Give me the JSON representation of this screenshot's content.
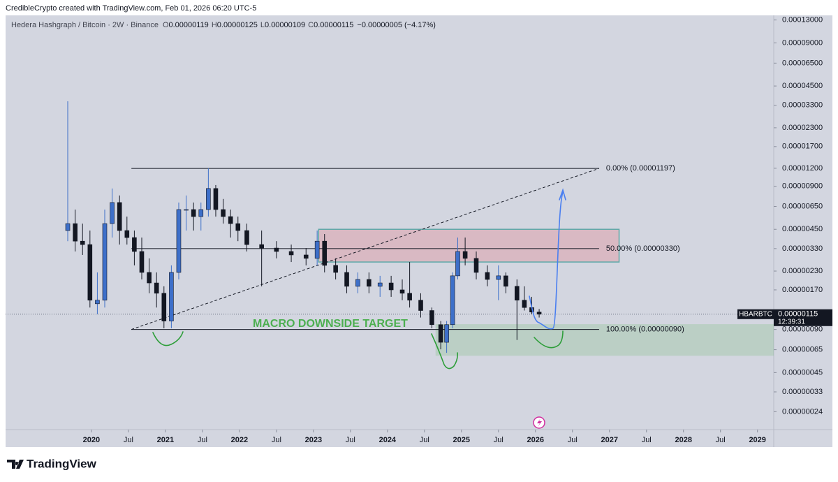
{
  "chart_data": {
    "type": "candlestick",
    "credit": "CredibleCrypto created with TradingView.com, Feb 01, 2026 06:20 UTC-5",
    "symbol_title": "Hedera Hashgraph / Bitcoin · 2W · Binance",
    "ohlc_legend": [
      {
        "key": "O",
        "value": "0.00000119"
      },
      {
        "key": "H",
        "value": "0.00000125"
      },
      {
        "key": "L",
        "value": "0.00000109"
      },
      {
        "key": "C",
        "value": "0.00000115"
      }
    ],
    "change": "−0.00000005 (−4.17%)",
    "brand": "TradingView",
    "log_scale": true,
    "grid": false,
    "up_color": "#3d6fc9",
    "down_color": "#131722",
    "xlim": [
      2018.84,
      2029.22
    ],
    "ylim": [
      1.8e-07,
      0.00014
    ],
    "xticks": [
      {
        "value": 2020,
        "label": "2020"
      },
      {
        "value": 2020.5,
        "label": "Jul"
      },
      {
        "value": 2021,
        "label": "2021"
      },
      {
        "value": 2021.5,
        "label": "Jul"
      },
      {
        "value": 2022,
        "label": "2022"
      },
      {
        "value": 2022.5,
        "label": "Jul"
      },
      {
        "value": 2023,
        "label": "2023"
      },
      {
        "value": 2023.5,
        "label": "Jul"
      },
      {
        "value": 2024,
        "label": "2024"
      },
      {
        "value": 2024.5,
        "label": "Jul"
      },
      {
        "value": 2025,
        "label": "2025"
      },
      {
        "value": 2025.5,
        "label": "Jul"
      },
      {
        "value": 2026,
        "label": "2026"
      },
      {
        "value": 2026.5,
        "label": "Jul"
      },
      {
        "value": 2027,
        "label": "2027"
      },
      {
        "value": 2027.5,
        "label": "Jul"
      },
      {
        "value": 2028,
        "label": "2028"
      },
      {
        "value": 2028.5,
        "label": "Jul"
      },
      {
        "value": 2029,
        "label": "2029"
      }
    ],
    "yticks": [
      {
        "value": 0.00013,
        "label": "0.00013000"
      },
      {
        "value": 9e-05,
        "label": "0.00009000"
      },
      {
        "value": 6.5e-05,
        "label": "0.00006500"
      },
      {
        "value": 4.5e-05,
        "label": "0.00004500"
      },
      {
        "value": 3.3e-05,
        "label": "0.00003300"
      },
      {
        "value": 2.3e-05,
        "label": "0.00002300"
      },
      {
        "value": 1.7e-05,
        "label": "0.00001700"
      },
      {
        "value": 1.2e-05,
        "label": "0.00001200"
      },
      {
        "value": 9e-06,
        "label": "0.00000900"
      },
      {
        "value": 6.5e-06,
        "label": "0.00000650"
      },
      {
        "value": 4.5e-06,
        "label": "0.00000450"
      },
      {
        "value": 3.3e-06,
        "label": "0.00000330"
      },
      {
        "value": 2.3e-06,
        "label": "0.00000230"
      },
      {
        "value": 1.7e-06,
        "label": "0.00000170"
      },
      {
        "value": 9e-07,
        "label": "0.00000090"
      },
      {
        "value": 6.5e-07,
        "label": "0.00000065"
      },
      {
        "value": 4.5e-07,
        "label": "0.00000045"
      },
      {
        "value": 3.3e-07,
        "label": "0.00000033"
      },
      {
        "value": 2.4e-07,
        "label": "0.00000024"
      }
    ],
    "x": [
      2019.68,
      2019.78,
      2019.88,
      2019.98,
      2020.08,
      2020.18,
      2020.28,
      2020.38,
      2020.48,
      2020.58,
      2020.68,
      2020.78,
      2020.88,
      2020.98,
      2021.08,
      2021.18,
      2021.28,
      2021.38,
      2021.48,
      2021.58,
      2021.68,
      2021.78,
      2021.88,
      2021.98,
      2022.1,
      2022.3,
      2022.5,
      2022.7,
      2022.9,
      2023.05,
      2023.15,
      2023.3,
      2023.45,
      2023.6,
      2023.75,
      2023.9,
      2024.05,
      2024.2,
      2024.3,
      2024.45,
      2024.6,
      2024.72,
      2024.8,
      2024.88,
      2024.95,
      2025.05,
      2025.2,
      2025.35,
      2025.5,
      2025.6,
      2025.75,
      2025.85,
      2025.95,
      2026.05
    ],
    "open": [
      4.41e-06,
      4.93e-06,
      3.72e-06,
      3.52e-06,
      1.36e-06,
      1.44e-06,
      4.93e-06,
      6.92e-06,
      4.41e-06,
      3.94e-06,
      3.15e-06,
      2.25e-06,
      1.9e-06,
      1.61e-06,
      1.03e-06,
      2.25e-06,
      6.18e-06,
      6.18e-06,
      5.52e-06,
      6.18e-06,
      8.67e-06,
      6.18e-06,
      5.52e-06,
      4.93e-06,
      4.41e-06,
      3.52e-06,
      3.33e-06,
      3.15e-06,
      2.98e-06,
      2.82e-06,
      3.72e-06,
      2.52e-06,
      2.25e-06,
      1.8e-06,
      2.01e-06,
      1.8e-06,
      1.9e-06,
      1.7e-06,
      1.61e-06,
      1.44e-06,
      1.22e-06,
      9.72e-07,
      7.32e-07,
      9.72e-07,
      2.13e-06,
      3.15e-06,
      2.82e-06,
      2.25e-06,
      2.01e-06,
      2.13e-06,
      1.8e-06,
      1.44e-06,
      1.28e-06,
      1.19e-06
    ],
    "high": [
      3.52e-05,
      6.18e-06,
      4.93e-06,
      4.41e-06,
      2.25e-06,
      6.18e-06,
      8.67e-06,
      7.75e-06,
      5.52e-06,
      4.41e-06,
      3.94e-06,
      2.82e-06,
      2.25e-06,
      1.8e-06,
      2.52e-06,
      6.92e-06,
      7.75e-06,
      6.92e-06,
      6.92e-06,
      1.2e-05,
      9.16e-06,
      7.33e-06,
      6.18e-06,
      5.52e-06,
      4.93e-06,
      4.41e-06,
      3.72e-06,
      3.52e-06,
      3.33e-06,
      4.41e-06,
      4.17e-06,
      2.82e-06,
      2.52e-06,
      2.25e-06,
      2.25e-06,
      2.13e-06,
      2.13e-06,
      2.01e-06,
      2.66e-06,
      1.61e-06,
      1.28e-06,
      1.03e-06,
      1.03e-06,
      2.25e-06,
      3.94e-06,
      3.94e-06,
      3.15e-06,
      2.52e-06,
      2.52e-06,
      2.25e-06,
      2.01e-06,
      1.8e-06,
      1.52e-06,
      1.25e-06
    ],
    "low": [
      3.72e-06,
      3.15e-06,
      2.98e-06,
      1.28e-06,
      1.15e-06,
      1.28e-06,
      3.94e-06,
      3.52e-06,
      3.52e-06,
      2.52e-06,
      2.01e-06,
      1.61e-06,
      1.28e-06,
      9.17e-07,
      9.17e-07,
      2.01e-06,
      4.41e-06,
      4.41e-06,
      4.41e-06,
      5.52e-06,
      5.52e-06,
      4.93e-06,
      3.94e-06,
      3.72e-06,
      3.15e-06,
      1.8e-06,
      2.82e-06,
      2.66e-06,
      2.52e-06,
      2.52e-06,
      2.25e-06,
      2.01e-06,
      1.61e-06,
      1.61e-06,
      1.61e-06,
      1.52e-06,
      1.52e-06,
      1.44e-06,
      1.28e-06,
      1.09e-06,
      9.17e-07,
      6.54e-07,
      6.18e-07,
      9.17e-07,
      2.01e-06,
      2.52e-06,
      2.01e-06,
      1.8e-06,
      1.44e-06,
      1.61e-06,
      7.6e-07,
      1.22e-06,
      1.15e-06,
      1.09e-06
    ],
    "close": [
      4.93e-06,
      3.72e-06,
      3.52e-06,
      1.44e-06,
      1.44e-06,
      4.93e-06,
      6.92e-06,
      4.41e-06,
      3.94e-06,
      3.15e-06,
      2.25e-06,
      1.9e-06,
      1.61e-06,
      1.03e-06,
      2.25e-06,
      6.18e-06,
      6.18e-06,
      5.52e-06,
      6.18e-06,
      8.67e-06,
      6.18e-06,
      5.52e-06,
      4.93e-06,
      4.41e-06,
      3.52e-06,
      3.33e-06,
      3.15e-06,
      2.98e-06,
      2.82e-06,
      3.72e-06,
      2.52e-06,
      2.25e-06,
      1.8e-06,
      2.01e-06,
      1.8e-06,
      1.9e-06,
      1.7e-06,
      1.61e-06,
      1.44e-06,
      1.22e-06,
      9.72e-07,
      7.32e-07,
      9.72e-07,
      2.13e-06,
      3.15e-06,
      2.82e-06,
      2.25e-06,
      2.01e-06,
      2.13e-06,
      1.8e-06,
      1.44e-06,
      1.28e-06,
      1.19e-06,
      1.15e-06
    ],
    "fib_range": [
      2020.54,
      2026.86
    ],
    "fib_levels": [
      {
        "value": 1.197e-05,
        "label": "0.00% (0.00001197)"
      },
      {
        "value": 3.3e-06,
        "label": "50.00% (0.00000330)"
      },
      {
        "value": 9e-07,
        "label": "100.00% (0.00000090)"
      }
    ],
    "trendline": {
      "x": [
        2020.54,
        2026.86
      ],
      "y": [
        9e-07,
        1.197e-05
      ]
    },
    "zones": [
      {
        "name": "resistance",
        "x": [
          2023.07,
          2027.13
        ],
        "y": [
          2.66e-06,
          4.5e-06
        ],
        "color": "#f23645"
      },
      {
        "name": "support",
        "x": [
          2024.65,
          2029.22
        ],
        "y": [
          5.9e-07,
          9.8e-07
        ],
        "color": "#4caf50"
      }
    ],
    "annotation": "MACRO DOWNSIDE TARGET",
    "last_price": {
      "symbol": "HBARBTC",
      "value": 1.15e-06,
      "label": "0.00000115",
      "countdown": "12:39:31"
    }
  }
}
